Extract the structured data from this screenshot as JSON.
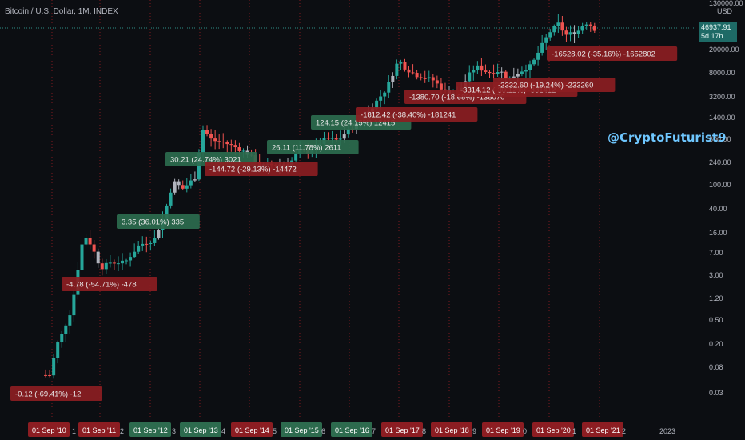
{
  "header": {
    "title": "Bitcoin / U.S. Dollar, 1M, INDEX",
    "currency": "USD",
    "price_tag_value": "46937.91",
    "price_tag_time": "5d 17h"
  },
  "watermark": "@CryptoFuturist9",
  "colors": {
    "background": "#0c0e12",
    "up": "#26a69a",
    "down": "#ef5350",
    "neutral": "#b0b4bd",
    "green_label": "#2d6b4e",
    "red_label": "#8c1d22",
    "grid": "#2a2e39"
  },
  "chart_data": {
    "type": "candlestick",
    "y_scale": "log",
    "y_ticks": [
      "130000.00",
      "20000.00",
      "8000.00",
      "3200.00",
      "1400.00",
      "600.00",
      "240.00",
      "100.00",
      "40.00",
      "16.00",
      "7.00",
      "3.00",
      "1.20",
      "0.50",
      "0.20",
      "0.08",
      "0.03"
    ],
    "x_labels": [
      {
        "text": "01 Sep '10",
        "style": "red"
      },
      {
        "text": "1",
        "style": "plain"
      },
      {
        "text": "01 Sep '11",
        "style": "red"
      },
      {
        "text": "2",
        "style": "plain"
      },
      {
        "text": "01 Sep '12",
        "style": "green"
      },
      {
        "text": "3",
        "style": "plain"
      },
      {
        "text": "01 Sep '13",
        "style": "green"
      },
      {
        "text": "4",
        "style": "plain"
      },
      {
        "text": "01 Sep '14",
        "style": "red"
      },
      {
        "text": "5",
        "style": "plain"
      },
      {
        "text": "01 Sep '15",
        "style": "green"
      },
      {
        "text": "6",
        "style": "plain"
      },
      {
        "text": "01 Sep '16",
        "style": "green"
      },
      {
        "text": "7",
        "style": "plain"
      },
      {
        "text": "01 Sep '17",
        "style": "red"
      },
      {
        "text": "8",
        "style": "plain"
      },
      {
        "text": "01 Sep '18",
        "style": "red"
      },
      {
        "text": "9",
        "style": "plain"
      },
      {
        "text": "01 Sep '19",
        "style": "red"
      },
      {
        "text": "0",
        "style": "plain"
      },
      {
        "text": "01 Sep '20",
        "style": "red"
      },
      {
        "text": "1",
        "style": "plain"
      },
      {
        "text": "01 Sep '21",
        "style": "red"
      },
      {
        "text": "2",
        "style": "plain"
      },
      {
        "text": "2023",
        "style": "plain"
      }
    ],
    "series_anchors": [
      {
        "t": 2010.58,
        "price": 0.06
      },
      {
        "t": 2010.75,
        "price": 0.06
      },
      {
        "t": 2010.9,
        "price": 0.2
      },
      {
        "t": 2011.0,
        "price": 0.3
      },
      {
        "t": 2011.2,
        "price": 0.8
      },
      {
        "t": 2011.35,
        "price": 5
      },
      {
        "t": 2011.45,
        "price": 15
      },
      {
        "t": 2011.6,
        "price": 10
      },
      {
        "t": 2011.8,
        "price": 4
      },
      {
        "t": 2012.0,
        "price": 5
      },
      {
        "t": 2012.3,
        "price": 5
      },
      {
        "t": 2012.6,
        "price": 10
      },
      {
        "t": 2012.9,
        "price": 12
      },
      {
        "t": 2013.1,
        "price": 30
      },
      {
        "t": 2013.3,
        "price": 120
      },
      {
        "t": 2013.5,
        "price": 90
      },
      {
        "t": 2013.75,
        "price": 140
      },
      {
        "t": 2013.9,
        "price": 950
      },
      {
        "t": 2014.1,
        "price": 600
      },
      {
        "t": 2014.35,
        "price": 550
      },
      {
        "t": 2014.6,
        "price": 450
      },
      {
        "t": 2014.85,
        "price": 350
      },
      {
        "t": 2015.1,
        "price": 220
      },
      {
        "t": 2015.4,
        "price": 230
      },
      {
        "t": 2015.7,
        "price": 240
      },
      {
        "t": 2015.9,
        "price": 400
      },
      {
        "t": 2016.1,
        "price": 380
      },
      {
        "t": 2016.45,
        "price": 650
      },
      {
        "t": 2016.7,
        "price": 600
      },
      {
        "t": 2016.95,
        "price": 950
      },
      {
        "t": 2017.2,
        "price": 1300
      },
      {
        "t": 2017.45,
        "price": 2500
      },
      {
        "t": 2017.7,
        "price": 4500
      },
      {
        "t": 2017.95,
        "price": 14000
      },
      {
        "t": 2018.1,
        "price": 10000
      },
      {
        "t": 2018.35,
        "price": 7500
      },
      {
        "t": 2018.65,
        "price": 6500
      },
      {
        "t": 2018.95,
        "price": 3800
      },
      {
        "t": 2019.2,
        "price": 4100
      },
      {
        "t": 2019.45,
        "price": 9000
      },
      {
        "t": 2019.55,
        "price": 11000
      },
      {
        "t": 2019.8,
        "price": 8500
      },
      {
        "t": 2020.05,
        "price": 9300
      },
      {
        "t": 2020.2,
        "price": 6500
      },
      {
        "t": 2020.5,
        "price": 9300
      },
      {
        "t": 2020.7,
        "price": 11500
      },
      {
        "t": 2020.95,
        "price": 29000
      },
      {
        "t": 2021.1,
        "price": 45000
      },
      {
        "t": 2021.25,
        "price": 58000
      },
      {
        "t": 2021.4,
        "price": 37000
      },
      {
        "t": 2021.55,
        "price": 41000
      },
      {
        "t": 2021.65,
        "price": 43000
      },
      {
        "t": 2021.8,
        "price": 61000
      },
      {
        "t": 2021.9,
        "price": 57000
      },
      {
        "t": 2022.0,
        "price": 46900
      }
    ],
    "annotations": [
      {
        "text": "-0.12 (-69.41%) -12",
        "style": "red"
      },
      {
        "text": "-4.78 (-54.71%) -478",
        "style": "red"
      },
      {
        "text": "3.35 (36.01%) 335",
        "style": "green"
      },
      {
        "text": "30.21 (24.74%) 3021",
        "style": "green"
      },
      {
        "text": "-144.72 (-29.13%) -14472",
        "style": "red"
      },
      {
        "text": "26.11 (11.78%) 2611",
        "style": "green"
      },
      {
        "text": "124.15 (24.15%) 12415",
        "style": "green"
      },
      {
        "text": "-1812.42 (-38.40%) -181241",
        "style": "red"
      },
      {
        "text": "-1380.70 (-18.68%) -138070",
        "style": "red"
      },
      {
        "text": "-3314.12 (-30.12%) -331412",
        "style": "red"
      },
      {
        "text": "-2332.60 (-19.24%) -233260",
        "style": "red"
      },
      {
        "text": "-16528.02 (-35.16%) -1652802",
        "style": "red"
      }
    ]
  }
}
